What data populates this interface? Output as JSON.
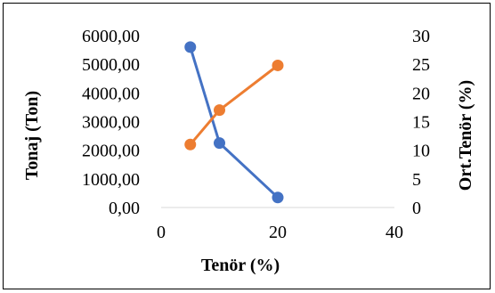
{
  "chart_data": {
    "type": "line",
    "title": "",
    "xlabel": "Tenör (%)",
    "ylabel_left": "Tonaj (Ton)",
    "ylabel_right": "Ort.Tenör (%)",
    "x_ticks": [
      "0",
      "20",
      "40"
    ],
    "xlim": [
      0,
      40
    ],
    "y_left_ticks": [
      "0,00",
      "1000,00",
      "2000,00",
      "3000,00",
      "4000,00",
      "5000,00",
      "6000,00"
    ],
    "ylim_left": [
      0,
      6000
    ],
    "y_right_ticks": [
      "0",
      "5",
      "10",
      "15",
      "20",
      "25",
      "30"
    ],
    "ylim_right": [
      0,
      30
    ],
    "grid": "none",
    "legend": "none",
    "series": [
      {
        "axis": "left",
        "color": "#4472C4",
        "points": [
          {
            "x": 5,
            "y": 5600
          },
          {
            "x": 10,
            "y": 2250
          },
          {
            "x": 20,
            "y": 350
          }
        ]
      },
      {
        "axis": "right",
        "color": "#ED7D31",
        "points": [
          {
            "x": 5,
            "y": 11
          },
          {
            "x": 10,
            "y": 17
          },
          {
            "x": 20,
            "y": 24.8
          }
        ]
      }
    ]
  }
}
